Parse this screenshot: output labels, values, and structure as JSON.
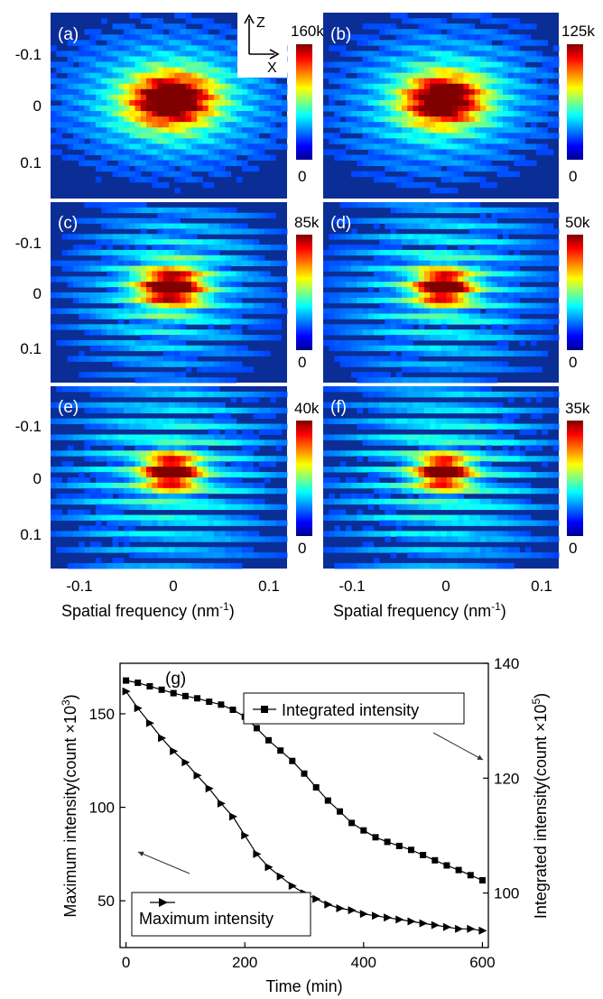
{
  "colors": {
    "background_map": "#0a2e96",
    "colormap": [
      "#00008f",
      "#0000ff",
      "#00ffff",
      "#ffff00",
      "#ff0000",
      "#7f0000"
    ],
    "series_line": "#000000"
  },
  "chart_data": [
    {
      "type": "heatmap",
      "panel_labels": [
        "(a)",
        "(b)",
        "(c)",
        "(d)",
        "(e)",
        "(f)"
      ],
      "colorbar_max_labels": [
        "160k",
        "125k",
        "85k",
        "50k",
        "40k",
        "35k"
      ],
      "colorbar_max_values": [
        160000,
        125000,
        85000,
        50000,
        40000,
        35000
      ],
      "colorbar_min_label": "0",
      "axis_inset": {
        "z_label": "Z",
        "x_label": "X"
      },
      "y_tick_labels": [
        "-0.1",
        "0",
        "0.1"
      ],
      "y_tick_values": [
        -0.1,
        0,
        0.1
      ],
      "x_tick_labels": [
        "-0.1",
        "0",
        "0.1"
      ],
      "x_tick_values": [
        -0.1,
        0,
        0.1
      ],
      "xlabel": "Spatial frequency (nm",
      "xlabel_sup": "-1",
      "xlabel_end": ")",
      "xlim": [
        -0.125,
        0.12
      ],
      "ylim": [
        -0.155,
        0.155
      ]
    },
    {
      "type": "line",
      "panel_label": "(g)",
      "xlabel": "Time (min)",
      "ylabel_left": "Maximum intensity(count ×10",
      "ylabel_left_sup": "3",
      "ylabel_left_end": ")",
      "ylabel_right": "Integrated intensity(count ×10",
      "ylabel_right_sup": "5",
      "ylabel_right_end": ")",
      "xlim": [
        -10,
        610
      ],
      "ylim_left": [
        25,
        177
      ],
      "ylim_right": [
        90.5,
        140
      ],
      "x_ticks": [
        0,
        200,
        400,
        600
      ],
      "y_ticks_left": [
        50,
        100,
        150
      ],
      "y_ticks_right": [
        100,
        120,
        140
      ],
      "series": [
        {
          "name": "Integrated intensity",
          "axis": "right",
          "marker": "square",
          "x": [
            0,
            20,
            40,
            60,
            80,
            100,
            120,
            140,
            160,
            180,
            200,
            220,
            240,
            260,
            280,
            300,
            320,
            340,
            360,
            380,
            400,
            420,
            440,
            460,
            480,
            500,
            520,
            540,
            560,
            580,
            600
          ],
          "values": [
            137,
            136.6,
            136.0,
            135.4,
            134.8,
            134.3,
            133.9,
            133.3,
            132.8,
            131.9,
            130.7,
            128.7,
            126.6,
            124.8,
            123.0,
            120.8,
            118.4,
            116.1,
            114.2,
            112.2,
            110.9,
            109.7,
            108.9,
            108.2,
            107.5,
            106.6,
            105.7,
            104.8,
            104.0,
            103.1,
            102.2
          ]
        },
        {
          "name": "Maximum intensity",
          "axis": "left",
          "marker": "triangle-right",
          "x": [
            0,
            20,
            40,
            60,
            80,
            100,
            120,
            140,
            160,
            180,
            200,
            220,
            240,
            260,
            280,
            300,
            320,
            340,
            360,
            380,
            400,
            420,
            440,
            460,
            480,
            500,
            520,
            540,
            560,
            580,
            600
          ],
          "values": [
            162,
            153,
            145,
            137,
            130,
            124,
            117,
            110,
            102,
            95,
            85,
            75,
            68,
            63,
            58,
            54,
            51,
            48,
            46,
            45,
            43,
            42,
            41,
            40,
            39,
            38,
            37,
            36,
            35,
            35,
            34
          ]
        }
      ],
      "legend_integrated": "Integrated intensity",
      "legend_maximum": "Maximum intensity"
    }
  ]
}
